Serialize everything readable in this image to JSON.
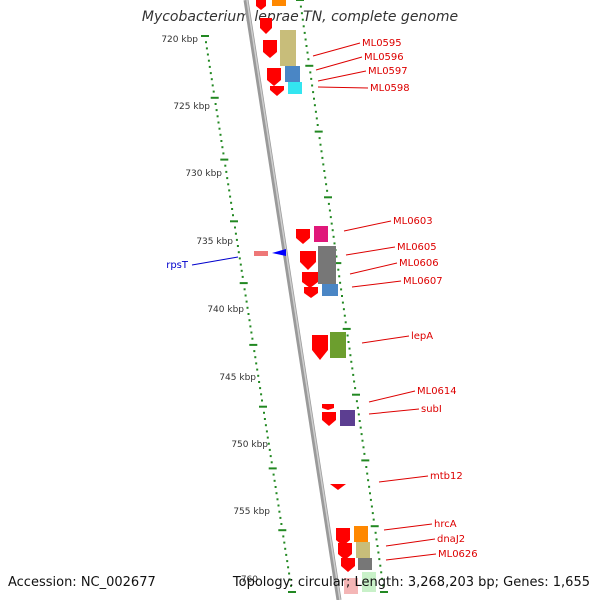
{
  "title": "Mycobacterium leprae TN, complete genome",
  "footer": {
    "accession": "Accession: NC_002677",
    "summary": "Topology: circular; Length: 3,268,203 bp; Genes: 1,655"
  },
  "ruler_labels": [
    "720 kbp",
    "725 kbp",
    "730 kbp",
    "735 kbp",
    "740 kbp",
    "745 kbp",
    "750 kbp",
    "755 kbp",
    "760"
  ],
  "gene_labels": [
    {
      "name": "ML0595",
      "color": "#dd0000"
    },
    {
      "name": "ML0596",
      "color": "#dd0000"
    },
    {
      "name": "ML0597",
      "color": "#dd0000"
    },
    {
      "name": "ML0598",
      "color": "#dd0000"
    },
    {
      "name": "ML0603",
      "color": "#dd0000"
    },
    {
      "name": "ML0605",
      "color": "#dd0000"
    },
    {
      "name": "ML0606",
      "color": "#dd0000"
    },
    {
      "name": "ML0607",
      "color": "#dd0000"
    },
    {
      "name": "lepA",
      "color": "#dd0000"
    },
    {
      "name": "ML0614",
      "color": "#dd0000"
    },
    {
      "name": "subI",
      "color": "#dd0000"
    },
    {
      "name": "mtb12",
      "color": "#dd0000"
    },
    {
      "name": "hrcA",
      "color": "#dd0000"
    },
    {
      "name": "dnaJ2",
      "color": "#dd0000"
    },
    {
      "name": "ML0626",
      "color": "#dd0000"
    },
    {
      "name": "rpsT",
      "color": "#0000cc"
    }
  ],
  "colors": {
    "backbone": "#888888",
    "ruler": "#228822",
    "cds_forward": "#ff0000",
    "cds_reverse": "#0000ff"
  }
}
